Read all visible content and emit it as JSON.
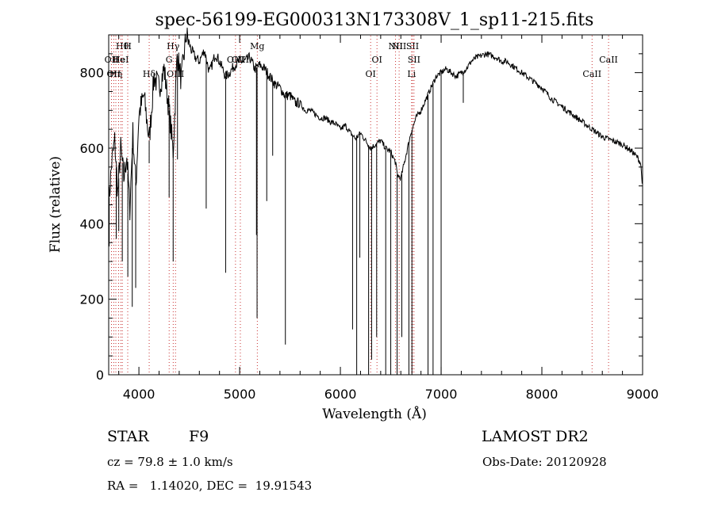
{
  "chart_data": {
    "type": "line",
    "title": "spec-56199-EG000313N173308V_1_sp11-215.fits",
    "xlabel": "Wavelength (Å)",
    "ylabel": "Flux (relative)",
    "xlim": [
      3700,
      9000
    ],
    "ylim": [
      0,
      900
    ],
    "xticks": [
      4000,
      5000,
      6000,
      7000,
      8000,
      9000
    ],
    "yticks": [
      0,
      200,
      400,
      600,
      800
    ],
    "x": [
      3700,
      3730,
      3760,
      3790,
      3820,
      3850,
      3880,
      3910,
      3940,
      3970,
      4000,
      4050,
      4102,
      4150,
      4200,
      4250,
      4300,
      4340,
      4380,
      4420,
      4470,
      4520,
      4560,
      4600,
      4650,
      4700,
      4760,
      4800,
      4861,
      4900,
      4950,
      5000,
      5050,
      5100,
      5150,
      5200,
      5250,
      5300,
      5350,
      5400,
      5450,
      5500,
      5550,
      5600,
      5650,
      5700,
      5750,
      5800,
      5850,
      5900,
      5950,
      6000,
      6050,
      6100,
      6150,
      6200,
      6250,
      6300,
      6350,
      6400,
      6450,
      6500,
      6550,
      6563,
      6600,
      6650,
      6700,
      6750,
      6800,
      6850,
      6900,
      6950,
      7000,
      7050,
      7100,
      7150,
      7200,
      7250,
      7300,
      7350,
      7400,
      7450,
      7500,
      7550,
      7600,
      7650,
      7700,
      7750,
      7800,
      7850,
      7900,
      7950,
      8000,
      8050,
      8100,
      8150,
      8200,
      8250,
      8300,
      8350,
      8400,
      8450,
      8500,
      8550,
      8600,
      8650,
      8700,
      8750,
      8800,
      8850,
      8900,
      8950,
      8980,
      9000
    ],
    "y": [
      450,
      560,
      620,
      480,
      600,
      520,
      580,
      440,
      640,
      500,
      690,
      740,
      620,
      790,
      760,
      810,
      700,
      590,
      850,
      780,
      900,
      860,
      840,
      830,
      860,
      800,
      850,
      830,
      790,
      800,
      820,
      830,
      830,
      840,
      810,
      820,
      810,
      790,
      770,
      760,
      740,
      740,
      720,
      720,
      700,
      700,
      690,
      680,
      680,
      670,
      665,
      650,
      660,
      640,
      625,
      640,
      620,
      600,
      610,
      620,
      600,
      590,
      560,
      530,
      520,
      580,
      640,
      680,
      700,
      730,
      760,
      790,
      800,
      810,
      800,
      790,
      800,
      810,
      830,
      840,
      845,
      850,
      845,
      840,
      830,
      830,
      820,
      810,
      800,
      790,
      780,
      770,
      760,
      745,
      730,
      720,
      710,
      700,
      690,
      680,
      670,
      660,
      650,
      640,
      630,
      625,
      620,
      615,
      610,
      600,
      590,
      575,
      560,
      500
    ],
    "absorption_lines": [
      {
        "x": 3705,
        "y": 340
      },
      {
        "x": 3775,
        "y": 360
      },
      {
        "x": 3800,
        "y": 380
      },
      {
        "x": 3835,
        "y": 300
      },
      {
        "x": 3890,
        "y": 260
      },
      {
        "x": 3934,
        "y": 180
      },
      {
        "x": 3968,
        "y": 230
      },
      {
        "x": 4102,
        "y": 560
      },
      {
        "x": 4300,
        "y": 470
      },
      {
        "x": 4340,
        "y": 300
      },
      {
        "x": 4383,
        "y": 570
      },
      {
        "x": 4668,
        "y": 440
      },
      {
        "x": 4861,
        "y": 270
      },
      {
        "x": 5167,
        "y": 370
      },
      {
        "x": 5173,
        "y": 150
      },
      {
        "x": 5269,
        "y": 460
      },
      {
        "x": 5328,
        "y": 580
      },
      {
        "x": 5454,
        "y": 80
      },
      {
        "x": 6121,
        "y": 120
      },
      {
        "x": 6162,
        "y": 0
      },
      {
        "x": 6193,
        "y": 310
      },
      {
        "x": 6280,
        "y": 0
      },
      {
        "x": 6310,
        "y": 40
      },
      {
        "x": 6360,
        "y": 100
      },
      {
        "x": 6450,
        "y": 0
      },
      {
        "x": 6500,
        "y": 0
      },
      {
        "x": 6563,
        "y": 0
      },
      {
        "x": 6610,
        "y": 100
      },
      {
        "x": 6680,
        "y": 0
      },
      {
        "x": 6710,
        "y": 0
      },
      {
        "x": 6870,
        "y": 0
      },
      {
        "x": 6920,
        "y": 0
      },
      {
        "x": 7000,
        "y": 0
      },
      {
        "x": 7220,
        "y": 720
      }
    ],
    "lines": [
      {
        "x": 3727,
        "row": 2,
        "label": "OII"
      },
      {
        "x": 3750,
        "row": 3,
        "label": "OII"
      },
      {
        "x": 3771,
        "row": 3,
        "label": "Hη"
      },
      {
        "x": 3798,
        "row": 2,
        "label": "He"
      },
      {
        "x": 3820,
        "row": 2,
        "label": "HeI"
      },
      {
        "x": 3835,
        "row": 1,
        "label": "Hθ"
      },
      {
        "x": 3889,
        "row": 1,
        "label": "H"
      },
      {
        "x": 4102,
        "row": 3,
        "label": "Hδ"
      },
      {
        "x": 4300,
        "row": 2,
        "label": "G"
      },
      {
        "x": 4340,
        "row": 1,
        "label": "Hγ"
      },
      {
        "x": 4363,
        "row": 3,
        "label": "OIII"
      },
      {
        "x": 4959,
        "row": 2,
        "label": "OIII"
      },
      {
        "x": 5007,
        "row": 2,
        "label": "OIII"
      },
      {
        "x": 5175,
        "row": 1,
        "label": "Mg"
      },
      {
        "x": 6300,
        "row": 3,
        "label": "OI"
      },
      {
        "x": 6363,
        "row": 2,
        "label": "OI"
      },
      {
        "x": 6548,
        "row": 1,
        "label": "NII"
      },
      {
        "x": 6583,
        "row": 1,
        "label": "NII"
      },
      {
        "x": 6707,
        "row": 3,
        "label": "Li"
      },
      {
        "x": 6716,
        "row": 1,
        "label": "SII"
      },
      {
        "x": 6731,
        "row": 2,
        "label": "SII"
      },
      {
        "x": 8498,
        "row": 3,
        "label": "CaII"
      },
      {
        "x": 8662,
        "row": 2,
        "label": "CaII"
      }
    ]
  },
  "info": {
    "class": "STAR",
    "subclass": "F9",
    "survey": "LAMOST DR2",
    "cz": "cz = 79.8 ± 1.0 km/s",
    "obs_date": "Obs-Date: 20120928",
    "coords": "RA =   1.14020, DEC =  19.91543"
  }
}
